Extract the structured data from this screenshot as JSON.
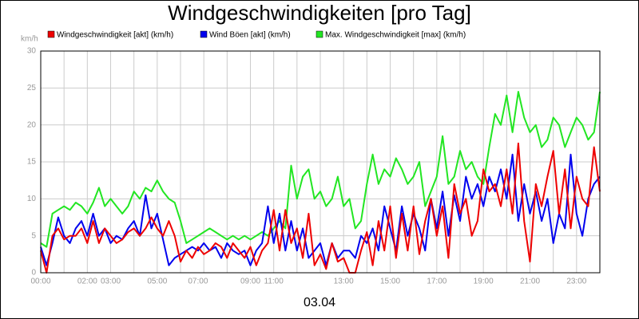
{
  "chart_data": {
    "type": "line",
    "title": "Windgeschwindigkeiten [pro Tag]",
    "ylabel": "km/h",
    "xlabel": "03.04",
    "categories": [
      "00:00",
      null,
      null,
      null,
      null,
      null,
      null,
      null,
      "02:00",
      null,
      null,
      null,
      "03:00",
      null,
      null,
      null,
      null,
      null,
      null,
      null,
      "05:00",
      null,
      null,
      null,
      null,
      null,
      null,
      "07:00",
      null,
      null,
      null,
      null,
      null,
      null,
      null,
      null,
      "09:00",
      null,
      null,
      null,
      "11:00",
      null,
      null,
      null,
      null,
      null,
      null,
      null,
      null,
      null,
      null,
      null,
      "13:00",
      null,
      null,
      null,
      null,
      null,
      null,
      null,
      "15:00",
      null,
      null,
      null,
      null,
      null,
      null,
      null,
      "17:00",
      null,
      null,
      null,
      null,
      null,
      null,
      null,
      "19:00",
      null,
      null,
      null,
      null,
      null,
      null,
      null,
      "21:00",
      null,
      null,
      null,
      null,
      null,
      null,
      null,
      "23:00",
      null,
      null,
      null,
      null
    ],
    "series": [
      {
        "name": "Max. Windgeschwindigkeit [max] (km/h)",
        "color": "#22e622",
        "values": [
          4,
          3.5,
          8,
          8.5,
          9,
          8.5,
          9.5,
          9,
          8,
          9.5,
          11.5,
          9,
          10,
          9,
          8,
          9,
          11,
          10,
          11.5,
          11,
          12.5,
          11,
          10,
          9.5,
          7,
          4,
          4.5,
          5,
          5.5,
          6,
          5.5,
          5,
          4.5,
          5,
          4.5,
          5,
          4.5,
          5,
          5.5,
          5,
          6,
          7,
          6,
          14.5,
          10,
          13,
          14,
          10,
          11,
          9,
          10,
          13,
          9,
          10,
          6,
          7,
          12,
          16,
          12,
          14,
          13,
          15.5,
          14,
          12,
          13,
          15,
          9,
          11,
          13,
          18.5,
          12,
          13,
          16.5,
          14,
          15,
          13,
          12,
          17,
          21.5,
          20,
          24,
          19,
          24.5,
          21,
          19,
          20,
          17,
          18,
          21,
          20,
          17,
          19,
          21,
          20,
          18,
          19,
          24.5
        ]
      },
      {
        "name": "Wind Böen [akt] (km/h)",
        "color": "#0000ee",
        "values": [
          3.5,
          1,
          4,
          7.5,
          5,
          4,
          6,
          7,
          5,
          8,
          5,
          6,
          4,
          5,
          4.5,
          6,
          7,
          5,
          10.5,
          6,
          8,
          4.5,
          1,
          2,
          2.5,
          3,
          3.5,
          3,
          4,
          3,
          3.5,
          2,
          4,
          3,
          2.5,
          3,
          1,
          3,
          4,
          9,
          4,
          8,
          3,
          7,
          3,
          6,
          2,
          3,
          4,
          1,
          4,
          2,
          3,
          3,
          2,
          5,
          4,
          6,
          3,
          9,
          6,
          3,
          9,
          5,
          8,
          6,
          3,
          10,
          6,
          11,
          5,
          10.5,
          7,
          13,
          10,
          12,
          9,
          13,
          11,
          14,
          10,
          16,
          7,
          12,
          8,
          11,
          7,
          10,
          4,
          8,
          6,
          16,
          8,
          5,
          10,
          12,
          13
        ]
      },
      {
        "name": "Windgeschwindigkeit [akt] (km/h)",
        "color": "#ee0000",
        "values": [
          3,
          0,
          5,
          6,
          4.5,
          5,
          5,
          6,
          4,
          7,
          4,
          6,
          5,
          4,
          4.5,
          5.5,
          6,
          5,
          6,
          7.5,
          6,
          5,
          7,
          5,
          1.5,
          3,
          2,
          3.5,
          2.5,
          3,
          4,
          3.5,
          2,
          4,
          3,
          2,
          3.5,
          1,
          3,
          4,
          8.5,
          3,
          8.5,
          4,
          6,
          2,
          8,
          1,
          2.5,
          0.5,
          4,
          1.5,
          2,
          0,
          0,
          3,
          5.5,
          1,
          7,
          3,
          9,
          2,
          8,
          3,
          9,
          2.5,
          7,
          10,
          5,
          9,
          2,
          12,
          8,
          10,
          5,
          7,
          14,
          11,
          12,
          9,
          14,
          8,
          17.5,
          7,
          1.5,
          12,
          9,
          13,
          16.5,
          8,
          14,
          6,
          13,
          10,
          9,
          17,
          11
        ]
      }
    ],
    "legend_order": [
      2,
      1,
      0
    ],
    "ylim": [
      0,
      30
    ],
    "yticks": [
      0,
      5,
      10,
      15,
      20,
      25,
      30
    ],
    "grid": true
  }
}
